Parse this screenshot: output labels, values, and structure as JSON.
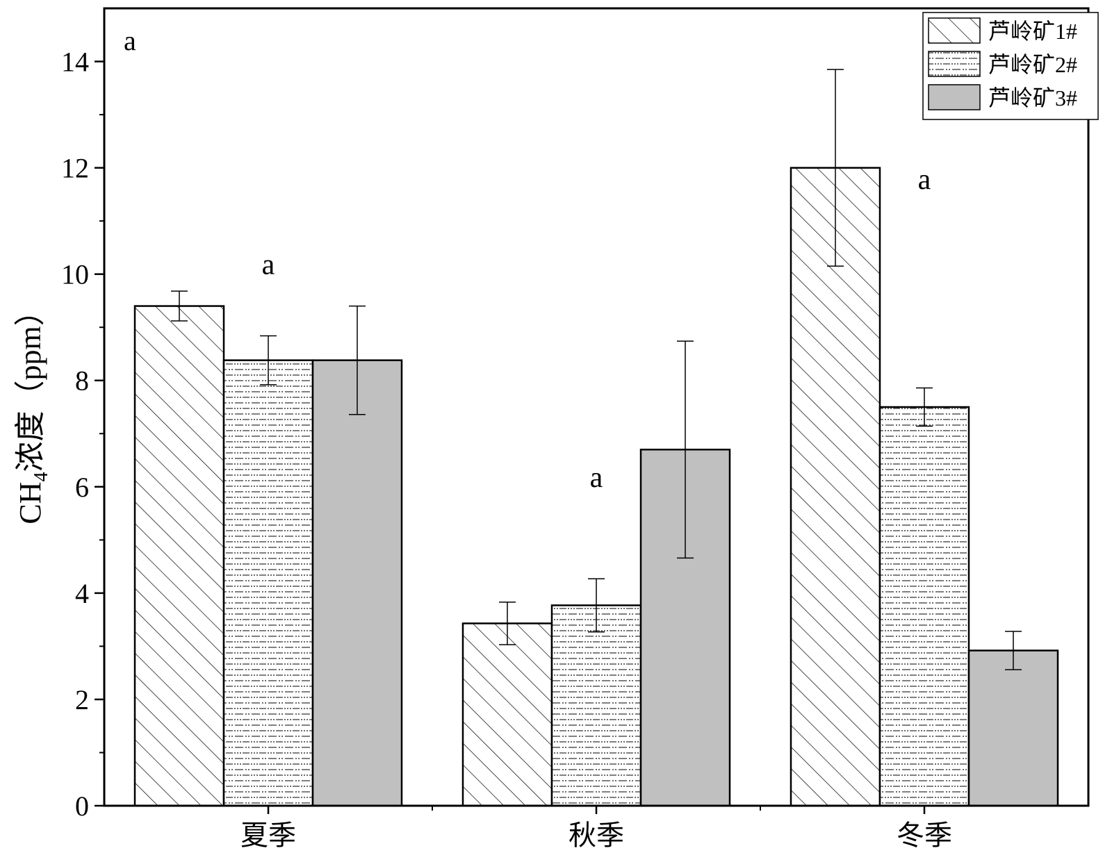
{
  "chart_data": {
    "type": "bar",
    "panel_label": "a",
    "categories": [
      "夏季",
      "秋季",
      "冬季"
    ],
    "series": [
      {
        "name": "芦岭矿1#",
        "pattern": "diagonal-hatch",
        "values": [
          9.4,
          3.43,
          12.0
        ],
        "errors": [
          0.28,
          0.4,
          1.85
        ]
      },
      {
        "name": "芦岭矿2#",
        "pattern": "dotted-dash",
        "values": [
          8.38,
          3.77,
          7.5
        ],
        "errors": [
          0.46,
          0.5,
          0.36
        ]
      },
      {
        "name": "芦岭矿3#",
        "pattern": "solid-gray",
        "values": [
          8.38,
          6.7,
          2.92
        ],
        "errors": [
          1.02,
          2.04,
          0.36
        ]
      }
    ],
    "significance_labels": [
      "a",
      "a",
      "a"
    ],
    "ylabel": {
      "main": "CH",
      "sub": "4",
      "rest": "浓度（ppm）"
    },
    "xlabel": "",
    "ylim": [
      0,
      15
    ],
    "yticks": [
      0,
      2,
      4,
      6,
      8,
      10,
      12,
      14
    ],
    "legend_position": "top-right",
    "grid": false,
    "colors": {
      "bar_fill_solid": "#c0c0c0",
      "stroke": "#000000",
      "background": "#ffffff"
    }
  }
}
